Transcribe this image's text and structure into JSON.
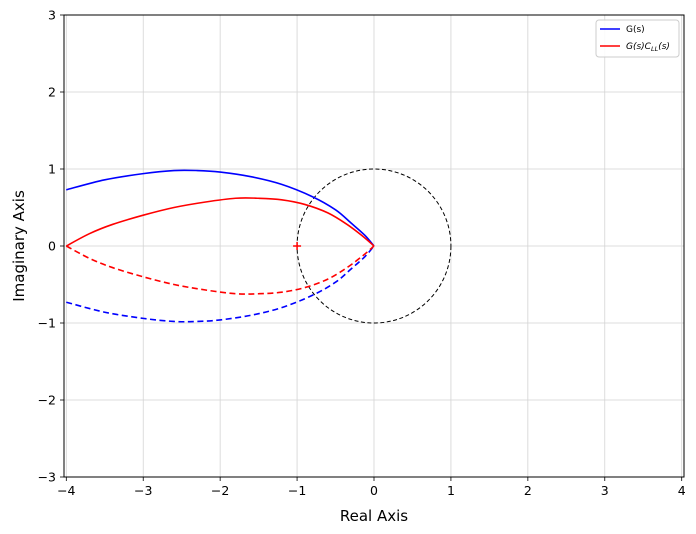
{
  "chart_data": {
    "type": "line",
    "title": "",
    "xlabel": "Real Axis",
    "ylabel": "Imaginary Axis",
    "xlim": [
      -4.03,
      4.03
    ],
    "ylim": [
      -3,
      3
    ],
    "x_ticks": [
      -4,
      -3,
      -2,
      -1,
      0,
      1,
      2,
      3,
      4
    ],
    "y_ticks": [
      -3,
      -2,
      -1,
      0,
      1,
      2,
      3
    ],
    "x_tick_labels": [
      "−4",
      "−3",
      "−2",
      "−1",
      "0",
      "1",
      "2",
      "3",
      "4"
    ],
    "y_tick_labels": [
      "−3",
      "−2",
      "−1",
      "0",
      "1",
      "2",
      "3"
    ],
    "grid": true,
    "legend_position": "top-right",
    "series": [
      {
        "name": "G(s)",
        "color": "#0000ff",
        "x": [
          -4.0,
          -3.5,
          -3.0,
          -2.6,
          -2.3,
          -2.0,
          -1.6,
          -1.2,
          -0.8,
          -0.5,
          -0.3,
          -0.12,
          0.0
        ],
        "y": [
          0.73,
          0.86,
          0.94,
          0.98,
          0.98,
          0.96,
          0.9,
          0.8,
          0.64,
          0.47,
          0.3,
          0.14,
          0.0
        ],
        "mirror_y": true
      },
      {
        "name": "G(s)C_{LL}(s)",
        "color": "#ff0000",
        "x": [
          -4.0,
          -3.7,
          -3.4,
          -3.0,
          -2.6,
          -2.2,
          -1.8,
          -1.5,
          -1.2,
          -0.9,
          -0.6,
          -0.35,
          -0.15,
          0.0
        ],
        "y": [
          0.0,
          0.16,
          0.28,
          0.4,
          0.5,
          0.57,
          0.62,
          0.62,
          0.6,
          0.54,
          0.43,
          0.28,
          0.13,
          0.0
        ],
        "mirror_y": true
      }
    ],
    "critical_point": {
      "x": -1,
      "y": 0,
      "color": "#ff0000"
    },
    "unit_circle": {
      "cx": 0,
      "cy": 0,
      "r": 1,
      "color": "#000000"
    },
    "legend": {
      "g_label": "G(s)",
      "gcll_main": "G(s)C",
      "gcll_sub": "LL",
      "gcll_tail": "(s)"
    }
  }
}
